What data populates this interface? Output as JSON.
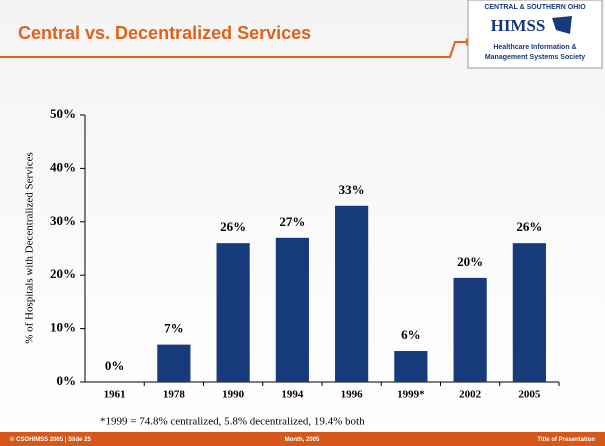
{
  "header": {
    "title": "Central vs. Decentralized Services"
  },
  "logo": {
    "top": "CENTRAL & SOUTHERN OHIO",
    "name": "HIMSS",
    "line1": "Healthcare Information &",
    "line2": "Management Systems Society"
  },
  "footer": {
    "left": "© CSOHIMSS 2005  |  Slide 25",
    "center": "Month, 2005",
    "right": "Title of Presentation"
  },
  "chart_data": {
    "type": "bar",
    "y_label": "% of Hospitals with Decentralized Services",
    "categories": [
      "1961",
      "1978",
      "1990",
      "1994",
      "1996",
      "1999*",
      "2002",
      "2005"
    ],
    "values": [
      0,
      7,
      26,
      27,
      33,
      5.8,
      19.5,
      26
    ],
    "value_labels": [
      "0%",
      "7%",
      "26%",
      "27%",
      "33%",
      "6%",
      "20%",
      "26%"
    ],
    "color": "#173a7a",
    "ylim": [
      0,
      50
    ],
    "yticks": [
      {
        "value": 0,
        "label": "0%"
      },
      {
        "value": 10,
        "label": "10%"
      },
      {
        "value": 20,
        "label": "20%"
      },
      {
        "value": 30,
        "label": "30%"
      },
      {
        "value": 40,
        "label": "40%"
      },
      {
        "value": 50,
        "label": "50%"
      }
    ],
    "grid": false,
    "footnote": "*1999 = 74.8% centralized, 5.8% decentralized, 19.4% both"
  }
}
